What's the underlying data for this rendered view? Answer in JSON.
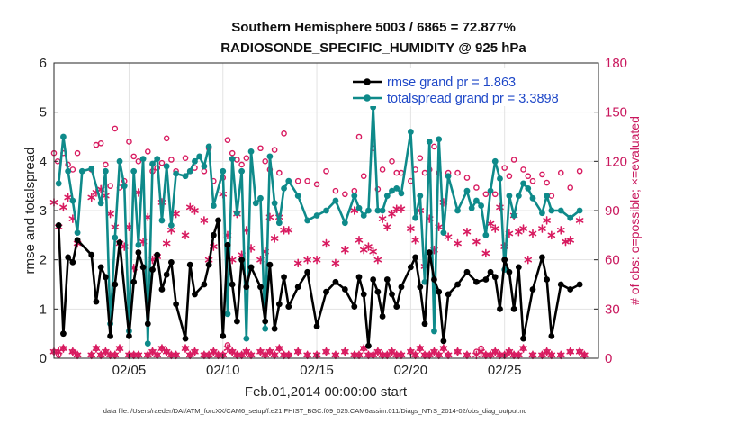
{
  "chart_data": {
    "type": "line",
    "title": "Southern Hemisphere 5003 / 6865 = 72.877%",
    "subtitle": "RADIOSONDE_SPECIFIC_HUMIDITY @ 925 hPa",
    "xlabel": "Feb.01,2014 00:00:00 start",
    "ylabel": "rmse and totalspread",
    "ylabel_right": "# of obs: o=possible; ×=evaluated",
    "footnote": "data file: /Users/raeder/DAI/ATM_forcXX/CAM6_setup/f.e21.FHIST_BGC.f09_025.CAM6assim.011/Diags_NTrS_2014-02/obs_diag_output.nc",
    "xlim": [
      1,
      30
    ],
    "ylim": [
      0,
      6
    ],
    "ylim_right": [
      0,
      180
    ],
    "x_ticks": [
      5,
      10,
      15,
      20,
      25
    ],
    "x_tick_labels": [
      "02/05",
      "02/10",
      "02/15",
      "02/20",
      "02/25"
    ],
    "y_ticks": [
      0,
      1,
      2,
      3,
      4,
      5,
      6
    ],
    "y_ticks_right": [
      0,
      30,
      60,
      90,
      120,
      150,
      180
    ],
    "grid": true,
    "legend_position": "top-right",
    "colors": {
      "rmse": "#000000",
      "totalspread": "#0e8a8a",
      "obs": "#d81b60",
      "legend_text": "#1f48c8",
      "right_axis": "#c9175d"
    },
    "series": [
      {
        "name": "rmse grand pr = 1.863",
        "x": [
          1.25,
          1.5,
          1.75,
          2.0,
          2.25,
          3.0,
          3.25,
          3.5,
          3.75,
          4.0,
          4.25,
          4.5,
          5.0,
          5.25,
          5.5,
          5.75,
          6.0,
          6.25,
          6.5,
          6.75,
          7.0,
          7.25,
          7.5,
          8.0,
          8.25,
          8.5,
          9.0,
          9.25,
          9.5,
          9.75,
          10.0,
          10.25,
          10.5,
          10.75,
          11.0,
          11.25,
          11.5,
          12.0,
          12.25,
          12.5,
          12.75,
          13.0,
          13.25,
          13.5,
          14.0,
          14.5,
          15.0,
          15.5,
          16.0,
          16.5,
          17.0,
          17.25,
          17.5,
          17.75,
          18.0,
          18.25,
          18.5,
          18.75,
          19.0,
          19.25,
          19.5,
          20.0,
          20.25,
          20.5,
          20.75,
          21.0,
          21.25,
          21.5,
          21.75,
          22.0,
          22.5,
          23.0,
          23.5,
          24.0,
          24.25,
          24.5,
          24.75,
          25.0,
          25.25,
          25.5,
          25.75,
          26.0,
          26.5,
          27.0,
          27.25,
          27.5,
          28.0,
          28.5,
          29.0
        ],
        "values": [
          2.7,
          0.5,
          2.05,
          1.95,
          2.4,
          2.1,
          1.15,
          1.85,
          1.65,
          0.45,
          1.5,
          2.35,
          0.45,
          1.55,
          2.15,
          1.85,
          0.7,
          1.8,
          2.1,
          1.4,
          1.7,
          1.95,
          1.1,
          0.4,
          1.9,
          1.3,
          1.5,
          1.9,
          2.5,
          2.8,
          0.45,
          2.3,
          1.5,
          0.75,
          2.0,
          1.45,
          1.85,
          1.45,
          0.75,
          1.9,
          0.6,
          1.1,
          1.65,
          1.05,
          1.45,
          1.75,
          0.65,
          1.35,
          1.55,
          1.4,
          1.05,
          1.65,
          1.3,
          0.25,
          1.6,
          1.35,
          0.85,
          1.6,
          1.3,
          1.05,
          1.45,
          1.85,
          2.05,
          1.45,
          0.7,
          2.15,
          1.6,
          1.35,
          0.35,
          1.3,
          1.5,
          1.75,
          1.55,
          1.6,
          1.75,
          1.65,
          1.0,
          2.0,
          1.75,
          1.0,
          1.85,
          0.4,
          1.4,
          2.05,
          1.6,
          0.45,
          1.5,
          1.4,
          1.5
        ]
      },
      {
        "name": "totalspread grand pr = 3.3898",
        "x": [
          1.25,
          1.5,
          1.75,
          2.0,
          2.25,
          2.5,
          3.0,
          3.5,
          3.75,
          4.0,
          4.25,
          4.5,
          4.75,
          5.0,
          5.25,
          5.5,
          5.75,
          6.0,
          6.25,
          6.5,
          6.75,
          7.0,
          7.25,
          7.5,
          8.0,
          8.25,
          8.5,
          8.75,
          9.0,
          9.25,
          9.5,
          10.0,
          10.25,
          10.5,
          10.75,
          11.0,
          11.25,
          11.5,
          11.75,
          12.0,
          12.25,
          12.5,
          12.75,
          13.0,
          13.25,
          13.5,
          14.0,
          14.5,
          15.0,
          15.5,
          16.0,
          16.5,
          17.0,
          17.25,
          17.5,
          17.75,
          18.0,
          18.25,
          18.5,
          18.75,
          19.0,
          19.25,
          19.5,
          20.0,
          20.25,
          20.5,
          20.75,
          21.0,
          21.25,
          21.5,
          21.75,
          22.0,
          22.5,
          23.0,
          23.25,
          23.5,
          23.75,
          24.0,
          24.25,
          24.5,
          24.75,
          25.0,
          25.25,
          25.5,
          25.75,
          26.0,
          26.25,
          26.5,
          27.0,
          27.25,
          27.5,
          28.0,
          28.5,
          29.0
        ],
        "values": [
          3.55,
          4.5,
          3.8,
          3.2,
          2.55,
          3.8,
          3.85,
          3.15,
          3.8,
          0.7,
          2.45,
          4.0,
          3.5,
          0.55,
          3.8,
          2.3,
          4.05,
          0.3,
          3.95,
          4.05,
          2.8,
          3.9,
          2.7,
          3.75,
          3.7,
          3.8,
          4.0,
          4.1,
          3.9,
          4.3,
          3.1,
          3.8,
          0.9,
          4.05,
          2.95,
          3.8,
          0.4,
          4.2,
          3.15,
          3.25,
          0.6,
          4.1,
          3.15,
          2.75,
          3.45,
          3.6,
          3.3,
          2.8,
          2.9,
          3.0,
          3.2,
          2.75,
          3.3,
          3.05,
          2.9,
          3.0,
          5.1,
          3.0,
          3.0,
          3.3,
          3.4,
          3.45,
          3.35,
          4.6,
          2.85,
          3.3,
          1.55,
          4.4,
          0.55,
          4.45,
          2.55,
          3.7,
          3.0,
          3.4,
          3.05,
          3.2,
          3.1,
          2.5,
          3.4,
          4.0,
          3.65,
          1.8,
          3.3,
          2.9,
          3.3,
          3.55,
          3.45,
          3.25,
          2.95,
          3.3,
          3.0,
          3.0,
          2.85,
          3.0
        ]
      },
      {
        "name": "obs possible",
        "x": [
          1.0,
          1.2,
          1.5,
          1.75,
          2.0,
          2.25,
          3.0,
          3.25,
          3.5,
          3.75,
          4.0,
          4.25,
          4.5,
          4.75,
          5.0,
          5.25,
          5.5,
          6.0,
          6.25,
          6.5,
          6.75,
          7.0,
          7.25,
          7.5,
          8.0,
          8.25,
          8.5,
          9.0,
          9.25,
          9.5,
          10.0,
          10.25,
          10.5,
          10.75,
          11.0,
          11.25,
          12.0,
          12.25,
          12.5,
          12.75,
          13.0,
          13.25,
          14.0,
          14.5,
          15.0,
          15.5,
          16.0,
          16.5,
          17.0,
          17.25,
          17.5,
          18.0,
          18.25,
          18.5,
          19.0,
          19.25,
          19.5,
          20.0,
          20.25,
          20.5,
          20.75,
          21.0,
          21.25,
          21.5,
          22.0,
          22.5,
          23.0,
          23.5,
          24.0,
          24.5,
          25.0,
          25.25,
          25.5,
          26.0,
          26.25,
          26.5,
          27.0,
          27.25,
          27.5,
          28.0,
          28.5,
          29.0
        ],
        "values": [
          125,
          120,
          125,
          118,
          115,
          125,
          115,
          130,
          131,
          118,
          105,
          140,
          104,
          108,
          132,
          123,
          120,
          126,
          114,
          116,
          119,
          134,
          121,
          114,
          122,
          114,
          116,
          114,
          128,
          108,
          110,
          133,
          125,
          121,
          118,
          122,
          128,
          120,
          115,
          127,
          113,
          137,
          108,
          108,
          106,
          114,
          102,
          100,
          102,
          135,
          111,
          128,
          103,
          115,
          120,
          113,
          113,
          108,
          115,
          122,
          113,
          115,
          129,
          113,
          113,
          113,
          110,
          104,
          100,
          100,
          116,
          111,
          121,
          115,
          111,
          108,
          112,
          107,
          99,
          113,
          104,
          114
        ]
      },
      {
        "name": "obs evaluated",
        "x": [
          1.0,
          1.25,
          1.5,
          1.75,
          2.0,
          2.25,
          3.0,
          3.25,
          3.5,
          3.75,
          4.0,
          4.25,
          4.5,
          4.75,
          5.0,
          5.25,
          5.5,
          5.75,
          6.0,
          6.25,
          6.5,
          6.75,
          7.0,
          7.25,
          7.5,
          8.0,
          8.25,
          8.5,
          9.0,
          9.25,
          9.5,
          10.0,
          10.25,
          10.5,
          10.75,
          11.0,
          11.25,
          11.5,
          12.0,
          12.25,
          12.5,
          12.75,
          13.0,
          13.25,
          13.5,
          14.0,
          14.5,
          15.0,
          15.5,
          16.0,
          16.5,
          17.0,
          17.25,
          17.5,
          17.75,
          18.0,
          18.25,
          18.5,
          18.75,
          19.0,
          19.25,
          19.5,
          20.0,
          20.25,
          20.5,
          20.75,
          21.0,
          21.25,
          21.5,
          21.75,
          22.0,
          22.5,
          23.0,
          23.5,
          24.0,
          24.25,
          24.5,
          24.75,
          25.0,
          25.25,
          25.5,
          25.75,
          26.0,
          26.25,
          26.5,
          27.0,
          27.25,
          27.5,
          28.0,
          28.25,
          28.5,
          29.0
        ],
        "values": [
          95,
          80,
          92,
          98,
          85,
          70,
          98,
          101,
          103,
          99,
          88,
          80,
          70,
          68,
          80,
          55,
          101,
          71,
          86,
          60,
          62,
          95,
          70,
          78,
          88,
          75,
          92,
          90,
          84,
          60,
          68,
          100,
          75,
          60,
          88,
          63,
          78,
          67,
          60,
          65,
          86,
          73,
          86,
          78,
          78,
          58,
          60,
          60,
          70,
          58,
          66,
          90,
          72,
          66,
          68,
          65,
          60,
          85,
          80,
          88,
          91,
          91,
          79,
          72,
          90,
          56,
          85,
          66,
          80,
          95,
          74,
          70,
          77,
          71,
          64,
          82,
          79,
          92,
          68,
          76,
          87,
          77,
          79,
          60,
          76,
          79,
          84,
          75,
          78,
          71,
          72,
          84
        ]
      },
      {
        "name": "obs possible (bottom)",
        "x": [
          1.0,
          1.25,
          1.5,
          2.0,
          2.25,
          3.0,
          3.25,
          3.5,
          3.75,
          4.0,
          4.25,
          4.5,
          5.0,
          5.25,
          5.5,
          6.0,
          6.25,
          6.5,
          6.75,
          7.0,
          7.25,
          7.5,
          8.0,
          8.25,
          8.5,
          9.0,
          9.25,
          9.5,
          9.75,
          10.0,
          10.25,
          10.5,
          10.75,
          11.0,
          11.25,
          11.5,
          12.0,
          12.25,
          12.5,
          12.75,
          13.0,
          13.25,
          13.5,
          14.0,
          14.5,
          15.0,
          15.5,
          16.0,
          16.5,
          17.0,
          17.25,
          17.5,
          17.75,
          18.0,
          18.25,
          18.5,
          18.75,
          19.0,
          19.25,
          19.5,
          20.0,
          20.25,
          20.5,
          20.75,
          21.0,
          21.25,
          21.5,
          21.75,
          22.0,
          22.5,
          23.0,
          23.5,
          23.75,
          24.0,
          24.25,
          24.5,
          24.75,
          25.0,
          25.25,
          25.5,
          25.75,
          26.0,
          26.5,
          27.0,
          27.25,
          27.5,
          28.0,
          28.5,
          29.0,
          29.25
        ],
        "values": [
          4,
          2,
          6,
          4,
          2,
          2,
          6,
          2,
          4,
          2,
          2,
          6,
          2,
          2,
          2,
          2,
          4,
          2,
          6,
          4,
          2,
          2,
          6,
          2,
          4,
          2,
          2,
          4,
          2,
          2,
          8,
          4,
          2,
          2,
          4,
          2,
          4,
          2,
          4,
          2,
          6,
          2,
          2,
          4,
          2,
          2,
          4,
          2,
          4,
          2,
          2,
          6,
          2,
          2,
          4,
          2,
          2,
          4,
          2,
          2,
          4,
          2,
          6,
          2,
          2,
          4,
          2,
          6,
          2,
          4,
          2,
          4,
          6,
          2,
          2,
          4,
          2,
          2,
          4,
          2,
          2,
          6,
          2,
          2,
          4,
          2,
          2,
          4,
          4,
          2
        ]
      },
      {
        "name": "obs evaluated (bottom)",
        "x": [
          1.0,
          1.25,
          1.5,
          2.0,
          2.25,
          3.0,
          3.25,
          3.5,
          3.75,
          4.0,
          4.25,
          4.5,
          5.0,
          5.25,
          5.5,
          6.0,
          6.25,
          6.5,
          6.75,
          7.0,
          7.25,
          7.5,
          8.0,
          8.25,
          8.5,
          9.0,
          9.25,
          9.5,
          9.75,
          10.0,
          10.25,
          10.5,
          10.75,
          11.0,
          11.25,
          11.5,
          12.0,
          12.25,
          12.5,
          12.75,
          13.0,
          13.25,
          13.5,
          14.0,
          14.5,
          15.0,
          15.5,
          16.0,
          16.5,
          17.0,
          17.25,
          17.5,
          17.75,
          18.0,
          18.25,
          18.5,
          18.75,
          19.0,
          19.25,
          19.5,
          20.0,
          20.25,
          20.5,
          20.75,
          21.0,
          21.25,
          21.5,
          21.75,
          22.0,
          22.5,
          23.0,
          23.5,
          23.75,
          24.0,
          24.25,
          24.5,
          24.75,
          25.0,
          25.25,
          25.5,
          25.75,
          26.0,
          26.5,
          27.0,
          27.25,
          27.5,
          28.0,
          28.5,
          29.0,
          29.25
        ],
        "values": [
          4,
          4,
          6,
          4,
          2,
          2,
          6,
          2,
          4,
          2,
          2,
          6,
          2,
          2,
          2,
          2,
          4,
          2,
          6,
          4,
          2,
          2,
          6,
          2,
          4,
          2,
          2,
          4,
          2,
          2,
          6,
          4,
          2,
          2,
          4,
          2,
          4,
          2,
          4,
          2,
          6,
          2,
          2,
          4,
          2,
          2,
          4,
          2,
          4,
          2,
          2,
          6,
          2,
          2,
          4,
          2,
          2,
          4,
          2,
          2,
          4,
          2,
          6,
          2,
          2,
          4,
          2,
          6,
          2,
          4,
          2,
          2,
          4,
          2,
          2,
          4,
          2,
          2,
          4,
          2,
          2,
          6,
          2,
          2,
          4,
          2,
          2,
          4,
          4,
          2
        ]
      }
    ]
  }
}
